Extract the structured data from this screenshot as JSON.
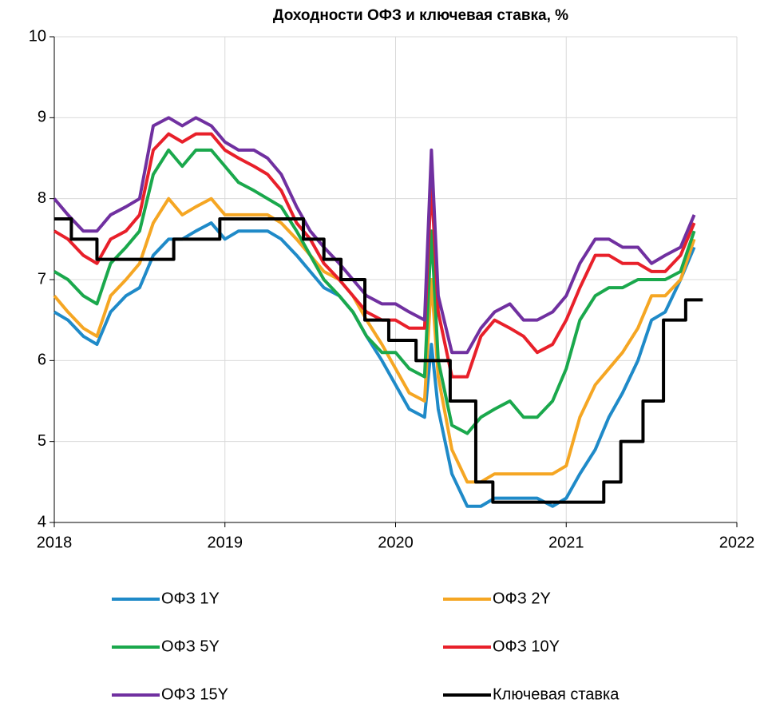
{
  "chart_data": {
    "type": "line",
    "title": "Доходности ОФЗ и ключевая ставка, %",
    "x": [
      2018.0,
      2018.08,
      2018.17,
      2018.25,
      2018.33,
      2018.42,
      2018.5,
      2018.58,
      2018.67,
      2018.75,
      2018.83,
      2018.92,
      2019.0,
      2019.08,
      2019.17,
      2019.25,
      2019.33,
      2019.42,
      2019.5,
      2019.58,
      2019.67,
      2019.75,
      2019.83,
      2019.92,
      2020.0,
      2020.08,
      2020.17,
      2020.21,
      2020.25,
      2020.33,
      2020.42,
      2020.5,
      2020.58,
      2020.67,
      2020.75,
      2020.83,
      2020.92,
      2021.0,
      2021.08,
      2021.17,
      2021.25,
      2021.33,
      2021.42,
      2021.5,
      2021.58,
      2021.67,
      2021.75
    ],
    "xlim": [
      2018,
      2022
    ],
    "xticks": [
      2018,
      2019,
      2020,
      2021,
      2022
    ],
    "ylim": [
      4,
      10
    ],
    "yticks": [
      4,
      5,
      6,
      7,
      8,
      9,
      10
    ],
    "grid": true,
    "legend": "bottom",
    "series": [
      {
        "name": "ОФЗ 1Y",
        "color": "#1f8ac8",
        "values": [
          6.6,
          6.5,
          6.3,
          6.2,
          6.6,
          6.8,
          6.9,
          7.3,
          7.5,
          7.5,
          7.6,
          7.7,
          7.5,
          7.6,
          7.6,
          7.6,
          7.5,
          7.3,
          7.1,
          6.9,
          6.8,
          6.6,
          6.3,
          6.0,
          5.7,
          5.4,
          5.3,
          6.2,
          5.4,
          4.6,
          4.2,
          4.2,
          4.3,
          4.3,
          4.3,
          4.3,
          4.2,
          4.3,
          4.6,
          4.9,
          5.3,
          5.6,
          6.0,
          6.5,
          6.6,
          7.0,
          7.4
        ]
      },
      {
        "name": "ОФЗ 2Y",
        "color": "#f5a623",
        "values": [
          6.8,
          6.6,
          6.4,
          6.3,
          6.8,
          7.0,
          7.2,
          7.7,
          8.0,
          7.8,
          7.9,
          8.0,
          7.8,
          7.8,
          7.8,
          7.8,
          7.7,
          7.5,
          7.3,
          7.1,
          7.0,
          6.8,
          6.5,
          6.2,
          5.9,
          5.6,
          5.5,
          7.0,
          5.8,
          4.9,
          4.5,
          4.5,
          4.6,
          4.6,
          4.6,
          4.6,
          4.6,
          4.7,
          5.3,
          5.7,
          5.9,
          6.1,
          6.4,
          6.8,
          6.8,
          7.0,
          7.5
        ]
      },
      {
        "name": "ОФЗ 5Y",
        "color": "#1aa84c",
        "values": [
          7.1,
          7.0,
          6.8,
          6.7,
          7.2,
          7.4,
          7.6,
          8.3,
          8.6,
          8.4,
          8.6,
          8.6,
          8.4,
          8.2,
          8.1,
          8.0,
          7.9,
          7.6,
          7.3,
          7.0,
          6.8,
          6.6,
          6.3,
          6.1,
          6.1,
          5.9,
          5.8,
          7.6,
          6.0,
          5.2,
          5.1,
          5.3,
          5.4,
          5.5,
          5.3,
          5.3,
          5.5,
          5.9,
          6.5,
          6.8,
          6.9,
          6.9,
          7.0,
          7.0,
          7.0,
          7.1,
          7.6
        ]
      },
      {
        "name": "ОФЗ 10Y",
        "color": "#e8202a",
        "values": [
          7.6,
          7.5,
          7.3,
          7.2,
          7.5,
          7.6,
          7.8,
          8.6,
          8.8,
          8.7,
          8.8,
          8.8,
          8.6,
          8.5,
          8.4,
          8.3,
          8.1,
          7.7,
          7.5,
          7.2,
          7.0,
          6.8,
          6.6,
          6.5,
          6.5,
          6.4,
          6.4,
          8.2,
          6.6,
          5.8,
          5.8,
          6.3,
          6.5,
          6.4,
          6.3,
          6.1,
          6.2,
          6.5,
          6.9,
          7.3,
          7.3,
          7.2,
          7.2,
          7.1,
          7.1,
          7.3,
          7.7
        ]
      },
      {
        "name": "ОФЗ 15Y",
        "color": "#7030a0",
        "values": [
          8.0,
          7.8,
          7.6,
          7.6,
          7.8,
          7.9,
          8.0,
          8.9,
          9.0,
          8.9,
          9.0,
          8.9,
          8.7,
          8.6,
          8.6,
          8.5,
          8.3,
          7.9,
          7.6,
          7.4,
          7.2,
          7.0,
          6.8,
          6.7,
          6.7,
          6.6,
          6.5,
          8.6,
          6.8,
          6.1,
          6.1,
          6.4,
          6.6,
          6.7,
          6.5,
          6.5,
          6.6,
          6.8,
          7.2,
          7.5,
          7.5,
          7.4,
          7.4,
          7.2,
          7.3,
          7.4,
          7.8
        ]
      },
      {
        "name": "Ключевая ставка",
        "color": "#000000",
        "step": true,
        "x": [
          2018,
          2018.1,
          2018.25,
          2018.7,
          2018.97,
          2019.46,
          2019.58,
          2019.68,
          2019.82,
          2019.96,
          2020.12,
          2020.32,
          2020.47,
          2020.57,
          2021.22,
          2021.32,
          2021.45,
          2021.57,
          2021.7,
          2021.8
        ],
        "values": [
          7.75,
          7.5,
          7.25,
          7.5,
          7.75,
          7.5,
          7.25,
          7.0,
          6.5,
          6.25,
          6.0,
          5.5,
          4.5,
          4.25,
          4.5,
          5.0,
          5.5,
          6.5,
          6.75,
          6.75
        ]
      }
    ]
  }
}
